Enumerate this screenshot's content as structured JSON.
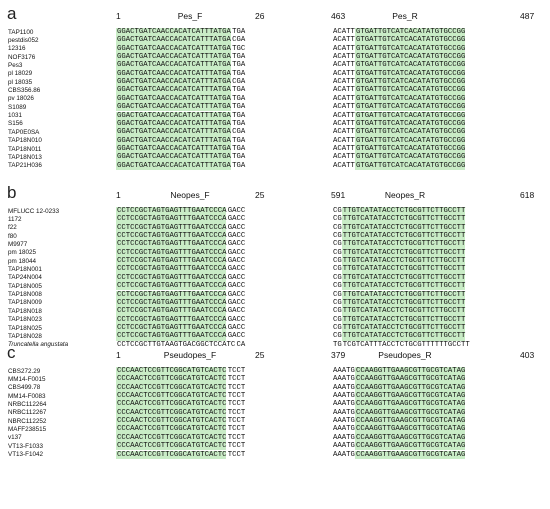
{
  "panels": [
    {
      "label": "a",
      "left_block": {
        "start": "1",
        "primer": "Pes_F",
        "end": "26"
      },
      "right_block": {
        "start": "463",
        "primer": "Pes_R",
        "end": "487"
      },
      "rows": [
        {
          "name": "TAP1100",
          "fseq": "GGACTGATCAACCACATCATTTATGA",
          "fsuffix": "TGA",
          "rprefix": "ACATT",
          "rseq": "GTGATTGTCATCACATATGTGCCGG"
        },
        {
          "name": "pestdis052",
          "fseq": "GGACTGATCAACCACATCATTTATGA",
          "fsuffix": "CGA",
          "rprefix": "ACATT",
          "rseq": "GTGATTGTCATCACATATGTGCCGG"
        },
        {
          "name": "12316",
          "fseq": "GGACTGATCAACCACATCATTTATGA",
          "fsuffix": "TGC",
          "rprefix": "ACATT",
          "rseq": "GTGATTGTCATCACATATGTGCCGG"
        },
        {
          "name": "NOF3176",
          "fseq": "GGACTGATCAACCACATCATTTATGA",
          "fsuffix": "TGA",
          "rprefix": "ACATT",
          "rseq": "GTGATTGTCATCACATATGTGCCGG"
        },
        {
          "name": "Pes3",
          "fseq": "GGACTGATCAACCACATCATTTATGA",
          "fsuffix": "TGA",
          "rprefix": "ACATT",
          "rseq": "GTGATTGTCATCACATATGTGCCGG"
        },
        {
          "name": "pl 18029",
          "fseq": "GGACTGATCAACCACATCATTTATGA",
          "fsuffix": "TGA",
          "rprefix": "ACATT",
          "rseq": "GTGATTGTCATCACATATGTGCCGG"
        },
        {
          "name": "pl 18035",
          "fseq": "GGACTGATCAACCACATCATTTATGA",
          "fsuffix": "CGA",
          "rprefix": "ACATT",
          "rseq": "GTGATTGTCATCACATATGTGCCGG"
        },
        {
          "name": "CBS356.86",
          "fseq": "GGACTGATCAACCACATCATTTATGA",
          "fsuffix": "TGA",
          "rprefix": "ACATT",
          "rseq": "GTGATTGTCATCACATATGTGCCGG"
        },
        {
          "name": "pv 18026",
          "fseq": "GGACTGATCAACCACATCATTTATGA",
          "fsuffix": "TGA",
          "rprefix": "ACATT",
          "rseq": "GTGATTGTCATCACATATGTGCCGG"
        },
        {
          "name": "S1089",
          "fseq": "GGACTGATCAACCACATCATTTATGA",
          "fsuffix": "TGA",
          "rprefix": "ACATT",
          "rseq": "GTGATTGTCATCACATATGTGCCGG"
        },
        {
          "name": "1031",
          "fseq": "GGACTGATCAACCACATCATTTATGA",
          "fsuffix": "TGA",
          "rprefix": "ACATT",
          "rseq": "GTGATTGTCATCACATATGTGCCGG"
        },
        {
          "name": "S156",
          "fseq": "GGACTGATCAACCACATCATTTATGA",
          "fsuffix": "TGA",
          "rprefix": "ACATT",
          "rseq": "GTGATTGTCATCACATATGTGCCGG"
        },
        {
          "name": "TAP0E0SA",
          "fseq": "GGACTGATCAACCACATCATTTATGA",
          "fsuffix": "CGA",
          "rprefix": "ACATT",
          "rseq": "GTGATTGTCATCACATATGTGCCGG"
        },
        {
          "name": "TAP18N010",
          "fseq": "GGACTGATCAACCACATCATTTATGA",
          "fsuffix": "TGA",
          "rprefix": "ACATT",
          "rseq": "GTGATTGTCATCACATATGTGCCGG"
        },
        {
          "name": "TAP18N011",
          "fseq": "GGACTGATCAACCACATCATTTATGA",
          "fsuffix": "TGA",
          "rprefix": "ACATT",
          "rseq": "GTGATTGTCATCACATATGTGCCGG"
        },
        {
          "name": "TAP18N013",
          "fseq": "GGACTGATCAACCACATCATTTATGA",
          "fsuffix": "TGA",
          "rprefix": "ACATT",
          "rseq": "GTGATTGTCATCACATATGTGCCGG"
        },
        {
          "name": "TAP21H036",
          "fseq": "GGACTGATCAACCACATCATTTATGA",
          "fsuffix": "TGA",
          "rprefix": "ACATT",
          "rseq": "GTGATTGTCATCACATATGTGCCGG"
        }
      ]
    },
    {
      "label": "b",
      "left_block": {
        "start": "1",
        "primer": "Neopes_F",
        "end": "25"
      },
      "right_block": {
        "start": "591",
        "primer": "Neopes_R",
        "end": "618"
      },
      "rows": [
        {
          "name": "MFLUCC 12-0233",
          "fseq": "CCTCCGCTAGTGAGTTTGAATCCCA",
          "fsuffix": "GACC",
          "rprefix": "CG",
          "rseq": "TTGTCATATACCTCTGCGTTCTTGCCTT"
        },
        {
          "name": "1172",
          "fseq": "CCTCCGCTAGTGAGTTTGAATCCCA",
          "fsuffix": "GACC",
          "rprefix": "CG",
          "rseq": "TTGTCATATACCTCTGCGTTCTTGCCTT"
        },
        {
          "name": "f22",
          "fseq": "CCTCCGCTAGTGAGTTTGAATCCCA",
          "fsuffix": "GACC",
          "rprefix": "CG",
          "rseq": "TTGTCATATACCTCTGCGTTCTTGCCTT"
        },
        {
          "name": "f80",
          "fseq": "CCTCCGCTAGTGAGTTTGAATCCCA",
          "fsuffix": "GACC",
          "rprefix": "CG",
          "rseq": "TTGTCATATACCTCTGCGTTCTTGCCTT"
        },
        {
          "name": "M9977",
          "fseq": "CCTCCGCTAGTGAGTTTGAATCCCA",
          "fsuffix": "GACC",
          "rprefix": "CG",
          "rseq": "TTGTCATATACCTCTGCGTTCTTGCCTT"
        },
        {
          "name": "pm 18025",
          "fseq": "CCTCCGCTAGTGAGTTTGAATCCCA",
          "fsuffix": "GACC",
          "rprefix": "CG",
          "rseq": "TTGTCATATACCTCTGCGTTCTTGCCTT"
        },
        {
          "name": "pm 18044",
          "fseq": "CCTCCGCTAGTGAGTTTGAATCCCA",
          "fsuffix": "GACC",
          "rprefix": "CG",
          "rseq": "TTGTCATATACCTCTGCGTTCTTGCCTT"
        },
        {
          "name": "TAP18N001",
          "fseq": "CCTCCGCTAGTGAGTTTGAATCCCA",
          "fsuffix": "GACC",
          "rprefix": "CG",
          "rseq": "TTGTCATATACCTCTGCGTTCTTGCCTT"
        },
        {
          "name": "TAP24N004",
          "fseq": "CCTCCGCTAGTGAGTTTGAATCCCA",
          "fsuffix": "GACC",
          "rprefix": "CG",
          "rseq": "TTGTCATATACCTCTGCGTTCTTGCCTT"
        },
        {
          "name": "TAP18N005",
          "fseq": "CCTCCGCTAGTGAGTTTGAATCCCA",
          "fsuffix": "GACC",
          "rprefix": "CG",
          "rseq": "TTGTCATATACCTCTGCGTTCTTGCCTT"
        },
        {
          "name": "TAP18N008",
          "fseq": "CCTCCGCTAGTGAGTTTGAATCCCA",
          "fsuffix": "GACC",
          "rprefix": "CG",
          "rseq": "TTGTCATATACCTCTGCGTTCTTGCCTT"
        },
        {
          "name": "TAP18N009",
          "fseq": "CCTCCGCTAGTGAGTTTGAATCCCA",
          "fsuffix": "GACC",
          "rprefix": "CG",
          "rseq": "TTGTCATATACCTCTGCGTTCTTGCCTT"
        },
        {
          "name": "TAP18N018",
          "fseq": "CCTCCGCTAGTGAGTTTGAATCCCA",
          "fsuffix": "GACC",
          "rprefix": "CG",
          "rseq": "TTGTCATATACCTCTGCGTTCTTGCCTT"
        },
        {
          "name": "TAP18N023",
          "fseq": "CCTCCGCTAGTGAGTTTGAATCCCA",
          "fsuffix": "GACC",
          "rprefix": "CG",
          "rseq": "TTGTCATATACCTCTGCGTTCTTGCCTT"
        },
        {
          "name": "TAP18N025",
          "fseq": "CCTCCGCTAGTGAGTTTGAATCCCA",
          "fsuffix": "GACC",
          "rprefix": "CG",
          "rseq": "TTGTCATATACCTCTGCGTTCTTGCCTT"
        },
        {
          "name": "TAP18N028",
          "fseq": "CCTCCGCTAGTGAGTTTGAATCCCA",
          "fsuffix": "GACC",
          "rprefix": "CG",
          "rseq": "TTGTCATATACCTCTGCGTTCTTGCCTT"
        },
        {
          "name": "Truncatella angustata",
          "italic": true,
          "plain": true,
          "fseq": "CCTCCGCTTGTAAGTGACGGCTCCATC",
          "fsuffix": "CA",
          "rprefix": "TG",
          "rseq": "TCGTCATTTACCTCTGCGTTTTTTGCCTT"
        }
      ]
    },
    {
      "label": "c",
      "left_block": {
        "start": "1",
        "primer": "Pseudopes_F",
        "end": "25"
      },
      "right_block": {
        "start": "379",
        "primer": "Pseudopes_R",
        "end": "403"
      },
      "rows": [
        {
          "name": "CBS272.29",
          "fseq": "CCCAACTCCGTTCGGCATGTCACTC",
          "fsuffix": "TCCT",
          "rprefix": "AAATG",
          "rseq": "CCAAGGTTGAAGCGTTGCGTCATAG"
        },
        {
          "name": "MM14-F0015",
          "fseq": "CCCAACTCCGTTCGGCATGTCACTC",
          "fsuffix": "TCCT",
          "rprefix": "AAATG",
          "rseq": "CCAAGGTTGAAGCGTTGCGTCATAG"
        },
        {
          "name": "CBS499.78",
          "fseq": "CCCAACTCCGTTCGGCATGTCACTC",
          "fsuffix": "TCCT",
          "rprefix": "AAATG",
          "rseq": "CCAAGGTTGAAGCGTTGCGTCATAG"
        },
        {
          "name": "MM14-F0083",
          "fseq": "CCCAACTCCGTTCGGCATGTCACTC",
          "fsuffix": "TCCT",
          "rprefix": "AAATG",
          "rseq": "CCAAGGTTGAAGCGTTGCGTCATAG"
        },
        {
          "name": "NRBC112264",
          "fseq": "CCCAACTCCGTTCGGCATGTCACTC",
          "fsuffix": "TCCT",
          "rprefix": "AAATG",
          "rseq": "CCAAGGTTGAAGCGTTGCGTCATAG"
        },
        {
          "name": "NRBC112267",
          "fseq": "CCCAACTCCGTTCGGCATGTCACTC",
          "fsuffix": "TCCT",
          "rprefix": "AAATG",
          "rseq": "CCAAGGTTGAAGCGTTGCGTCATAG"
        },
        {
          "name": "NBRC112252",
          "fseq": "CCCAACTCCGTTCGGCATGTCACTC",
          "fsuffix": "TCCT",
          "rprefix": "AAATG",
          "rseq": "CCAAGGTTGAAGCGTTGCGTCATAG"
        },
        {
          "name": "MAFF238515",
          "fseq": "CCCAACTCCGTTCGGCATGTCACTC",
          "fsuffix": "TCCT",
          "rprefix": "AAATG",
          "rseq": "CCAAGGTTGAAGCGTTGCGTCATAG"
        },
        {
          "name": "v137",
          "fseq": "CCCAACTCCGTTCGGCATGTCACTC",
          "fsuffix": "TCCT",
          "rprefix": "AAATG",
          "rseq": "CCAAGGTTGAAGCGTTGCGTCATAG"
        },
        {
          "name": "VT13-F1033",
          "fseq": "CCCAACTCCGTTCGGCATGTCACTC",
          "fsuffix": "TCCT",
          "rprefix": "AAATG",
          "rseq": "CCAAGGTTGAAGCGTTGCGTCATAG"
        },
        {
          "name": "VT13-F1042",
          "fseq": "CCCAACTCCGTTCGGCATGTCACTC",
          "fsuffix": "TCCT",
          "rprefix": "AAATG",
          "rseq": "CCAAGGTTGAAGCGTTGCGTCATAG"
        }
      ]
    }
  ],
  "colors": {
    "primer_highlight": "#c9ecc6",
    "text": "#111111"
  }
}
